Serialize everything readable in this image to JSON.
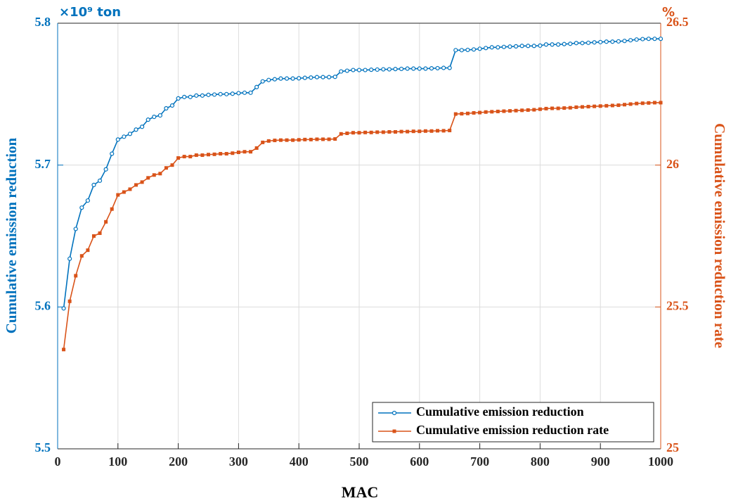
{
  "chart_data": {
    "type": "line",
    "xlabel": "MAC",
    "ylabel": "Cumulative emission reduction",
    "y2label": "Cumulative emission reduction rate",
    "y_unit": "×10⁹ ton",
    "y2_unit": "%",
    "x": [
      10,
      20,
      30,
      40,
      50,
      60,
      70,
      80,
      90,
      100,
      110,
      120,
      130,
      140,
      150,
      160,
      170,
      180,
      190,
      200,
      210,
      220,
      230,
      240,
      250,
      260,
      270,
      280,
      290,
      300,
      310,
      320,
      330,
      340,
      350,
      360,
      370,
      380,
      390,
      400,
      410,
      420,
      430,
      440,
      450,
      460,
      470,
      480,
      490,
      500,
      510,
      520,
      530,
      540,
      550,
      560,
      570,
      580,
      590,
      600,
      610,
      620,
      630,
      640,
      650,
      660,
      670,
      680,
      690,
      700,
      710,
      720,
      730,
      740,
      750,
      760,
      770,
      780,
      790,
      800,
      810,
      820,
      830,
      840,
      850,
      860,
      870,
      880,
      890,
      900,
      910,
      920,
      930,
      940,
      950,
      960,
      970,
      980,
      990,
      1000
    ],
    "series": [
      {
        "name": "Cumulative emission reduction",
        "color": "#0072BD",
        "marker": "circle",
        "values": [
          5.599,
          5.634,
          5.655,
          5.67,
          5.675,
          5.686,
          5.689,
          5.697,
          5.708,
          5.718,
          5.72,
          5.722,
          5.725,
          5.727,
          5.732,
          5.734,
          5.735,
          5.74,
          5.742,
          5.747,
          5.748,
          5.748,
          5.749,
          5.749,
          5.7495,
          5.7497,
          5.75,
          5.75,
          5.7503,
          5.7507,
          5.751,
          5.751,
          5.755,
          5.759,
          5.76,
          5.7605,
          5.761,
          5.761,
          5.761,
          5.7612,
          5.7615,
          5.7617,
          5.762,
          5.762,
          5.762,
          5.7622,
          5.766,
          5.7665,
          5.767,
          5.767,
          5.767,
          5.7672,
          5.7673,
          5.7675,
          5.7675,
          5.7677,
          5.7678,
          5.768,
          5.768,
          5.768,
          5.768,
          5.7682,
          5.7683,
          5.7685,
          5.7685,
          5.781,
          5.781,
          5.7812,
          5.7815,
          5.782,
          5.7825,
          5.783,
          5.783,
          5.7833,
          5.7835,
          5.7837,
          5.784,
          5.784,
          5.784,
          5.7842,
          5.785,
          5.785,
          5.785,
          5.7853,
          5.7855,
          5.786,
          5.786,
          5.7862,
          5.7865,
          5.7867,
          5.787,
          5.787,
          5.7872,
          5.7875,
          5.788,
          5.7885,
          5.7888,
          5.789,
          5.789,
          5.789
        ]
      },
      {
        "name": "Cumulative emission reduction rate",
        "color": "#D95319",
        "marker": "square",
        "axis": "y2",
        "values": [
          25.35,
          25.52,
          25.61,
          25.68,
          25.7,
          25.75,
          25.76,
          25.8,
          25.845,
          25.895,
          25.905,
          25.915,
          25.93,
          25.94,
          25.955,
          25.965,
          25.97,
          25.99,
          26.0,
          26.025,
          26.03,
          26.03,
          26.035,
          26.035,
          26.037,
          26.038,
          26.04,
          26.04,
          26.042,
          26.045,
          26.047,
          26.047,
          26.06,
          26.08,
          26.085,
          26.087,
          26.088,
          26.088,
          26.088,
          26.089,
          26.09,
          26.09,
          26.091,
          26.091,
          26.091,
          26.092,
          26.11,
          26.112,
          26.114,
          26.114,
          26.115,
          26.115,
          26.116,
          26.116,
          26.117,
          26.117,
          26.118,
          26.118,
          26.119,
          26.119,
          26.12,
          26.12,
          26.121,
          26.121,
          26.122,
          26.18,
          26.181,
          26.182,
          26.184,
          26.185,
          26.187,
          26.188,
          26.189,
          26.19,
          26.191,
          26.192,
          26.193,
          26.194,
          26.195,
          26.197,
          26.199,
          26.2,
          26.2,
          26.201,
          26.202,
          26.204,
          26.205,
          26.206,
          26.207,
          26.208,
          26.209,
          26.21,
          26.211,
          26.213,
          26.215,
          26.217,
          26.218,
          26.219,
          26.22,
          26.22
        ]
      }
    ],
    "xlim": [
      0,
      1000
    ],
    "xticks": [
      0,
      100,
      200,
      300,
      400,
      500,
      600,
      700,
      800,
      900,
      1000
    ],
    "ylim": [
      5.5,
      5.8
    ],
    "yticks": [
      5.5,
      5.6,
      5.7,
      5.8
    ],
    "y2lim": [
      25,
      26.5
    ],
    "y2ticks": [
      25,
      25.5,
      26,
      26.5
    ],
    "grid": true,
    "legend": "lower right"
  }
}
